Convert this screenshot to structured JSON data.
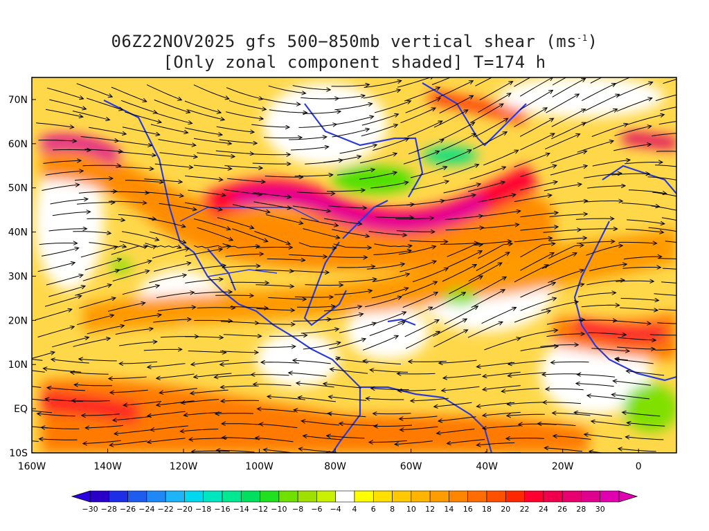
{
  "title": {
    "line1_prefix": "06Z22NOV2025 gfs 500−850mb vertical shear (ms",
    "line1_sup": "-1",
    "line1_suffix": ")",
    "line2": "[Only zonal component shaded] T=174 h"
  },
  "map": {
    "lat_labels": [
      "70N",
      "60N",
      "50N",
      "40N",
      "30N",
      "20N",
      "10N",
      "EQ",
      "10S"
    ],
    "lon_labels": [
      "160W",
      "140W",
      "120W",
      "100W",
      "80W",
      "60W",
      "40W",
      "20W",
      "0"
    ],
    "lon_range": [
      -160,
      10
    ],
    "lat_range": [
      -10,
      75
    ],
    "coastline_color": "#2a3bd8",
    "streamline_color": "#000000"
  },
  "colorbar": {
    "labels": [
      "-30",
      "-28",
      "-26",
      "-24",
      "-22",
      "-20",
      "-18",
      "-16",
      "-14",
      "-12",
      "-10",
      "-8",
      "-6",
      "-4",
      "4",
      "6",
      "8",
      "10",
      "12",
      "14",
      "16",
      "18",
      "20",
      "22",
      "24",
      "26",
      "28",
      "30"
    ],
    "colors": [
      "#2a00c8",
      "#1e2ee6",
      "#1e5cf0",
      "#1e88f6",
      "#1eb4f8",
      "#00d8f0",
      "#00e6c0",
      "#00e890",
      "#00e060",
      "#20e020",
      "#70e000",
      "#a0e000",
      "#c8f000",
      "#ffffff",
      "#ffff00",
      "#ffe000",
      "#ffc800",
      "#ffb400",
      "#ff9c00",
      "#ff8400",
      "#ff6c00",
      "#ff5000",
      "#ff2800",
      "#ff0030",
      "#f0004c",
      "#e80070",
      "#e00090",
      "#e000b0"
    ],
    "left_arrow_color": "#2a00e0",
    "right_arrow_color": "#e000b0"
  }
}
